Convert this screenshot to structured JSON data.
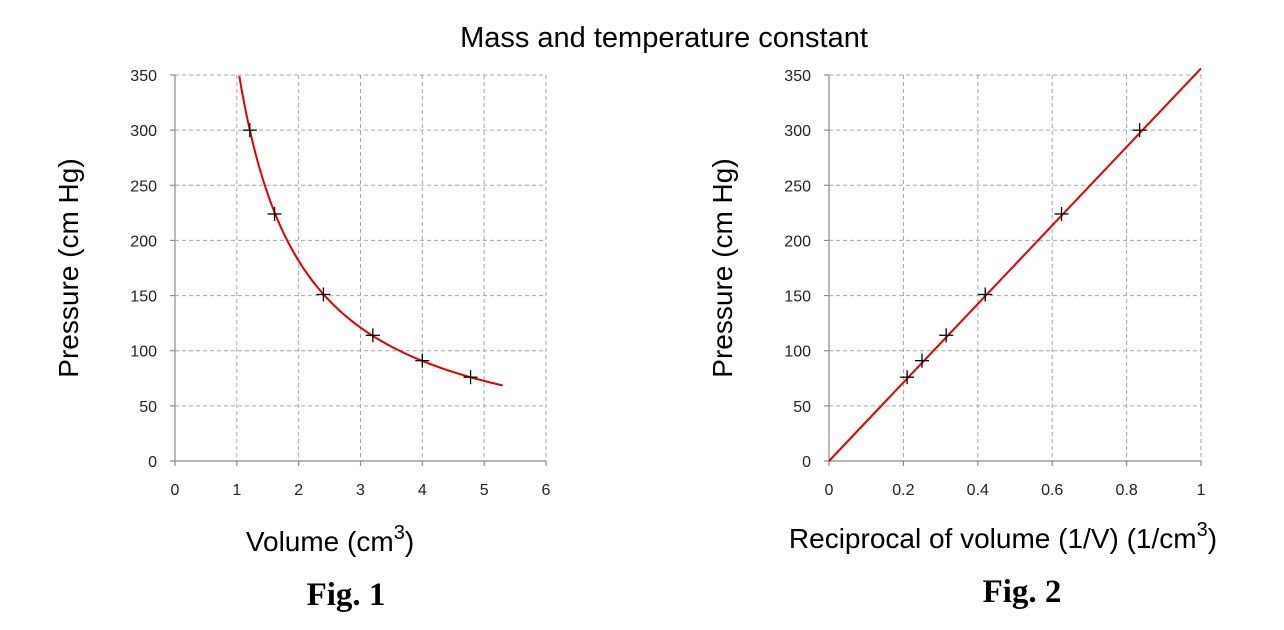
{
  "figure": {
    "title": "Mass and temperature constant"
  },
  "chart_data": [
    {
      "type": "scatter",
      "fig_label": "Fig. 1",
      "title": "",
      "xlabel": "Volume (cm",
      "xlabel_sup": "3",
      "xlabel_tail": ")",
      "ylabel": "Pressure (cm Hg)",
      "xlim": [
        0,
        6
      ],
      "ylim": [
        0,
        350
      ],
      "xticks": [
        "0",
        "1",
        "2",
        "3",
        "4",
        "5",
        "6"
      ],
      "yticks": [
        "0",
        "50",
        "100",
        "150",
        "200",
        "250",
        "300",
        "350"
      ],
      "grid": true,
      "fit": {
        "kind": "inverse",
        "constant": 363,
        "x_range": [
          1.04,
          5.3
        ],
        "color": "#e00000"
      },
      "series": [
        {
          "x": [
            1.21,
            1.61,
            2.4,
            3.2,
            4.0,
            4.78
          ],
          "y": [
            300,
            224,
            151,
            114,
            91,
            76
          ]
        }
      ]
    },
    {
      "type": "scatter",
      "fig_label": "Fig. 2",
      "title": "",
      "xlabel": "Reciprocal of volume (1/V) (1/cm",
      "xlabel_sup": "3",
      "xlabel_tail": ")",
      "ylabel": "Pressure (cm Hg)",
      "xlim": [
        0,
        1
      ],
      "ylim": [
        0,
        350
      ],
      "xticks": [
        "0",
        "0.2",
        "0.4",
        "0.6",
        "0.8",
        "1"
      ],
      "yticks": [
        "0",
        "50",
        "100",
        "150",
        "200",
        "250",
        "300",
        "350"
      ],
      "grid": true,
      "fit": {
        "kind": "linear",
        "slope": 356,
        "intercept": 0,
        "x_range": [
          0,
          1
        ],
        "color": "#e00000"
      },
      "series": [
        {
          "x": [
            0.21,
            0.25,
            0.315,
            0.42,
            0.625,
            0.835
          ],
          "y": [
            76,
            91,
            114,
            151,
            224,
            300
          ]
        }
      ]
    }
  ]
}
